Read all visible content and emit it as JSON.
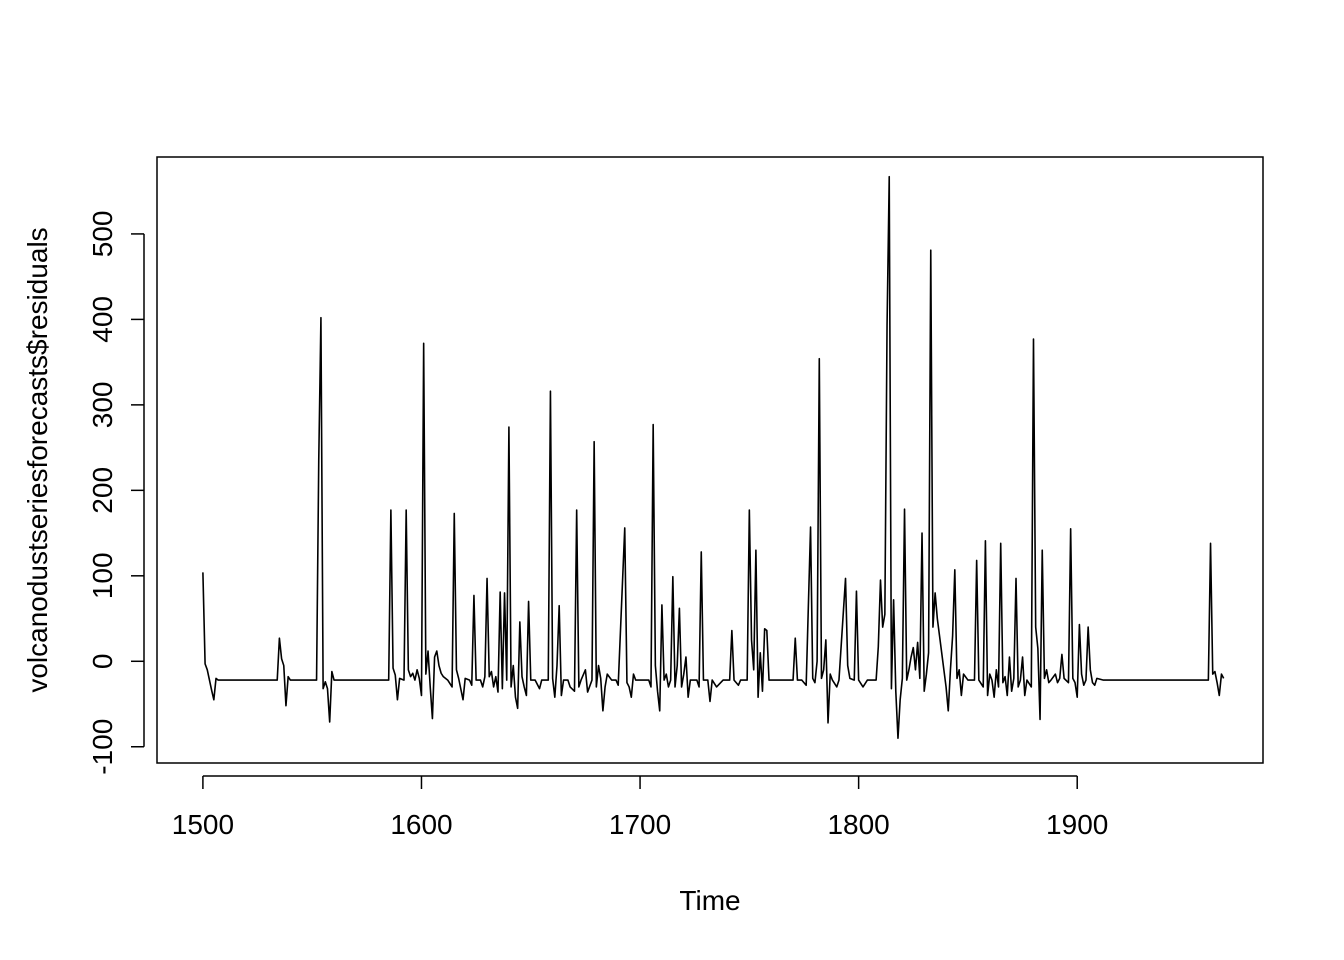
{
  "chart_data": {
    "type": "line",
    "title": "",
    "xlabel": "Time",
    "ylabel": "volcanodustseriesforecasts$residuals",
    "xlim": [
      1479,
      1985
    ],
    "ylim": [
      -119,
      590
    ],
    "x_ticks": [
      1500,
      1600,
      1700,
      1800,
      1900
    ],
    "y_ticks": [
      -100,
      0,
      100,
      200,
      300,
      400,
      500
    ],
    "grid": false,
    "legend": "none",
    "line_color": "#000000",
    "series": [
      {
        "points": [
          [
            1500,
            104
          ],
          [
            1501,
            -3
          ],
          [
            1502,
            -10
          ],
          [
            1503,
            -22
          ],
          [
            1504,
            -34
          ],
          [
            1505,
            -45
          ],
          [
            1506,
            -20
          ],
          [
            1507,
            -22
          ],
          [
            1534,
            -22
          ],
          [
            1535,
            27
          ],
          [
            1536,
            3
          ],
          [
            1537,
            -5
          ],
          [
            1538,
            -52
          ],
          [
            1539,
            -18
          ],
          [
            1540,
            -22
          ],
          [
            1552,
            -22
          ],
          [
            1553,
            235
          ],
          [
            1554,
            402
          ],
          [
            1555,
            -32
          ],
          [
            1556,
            -24
          ],
          [
            1557,
            -32
          ],
          [
            1558,
            -71
          ],
          [
            1559,
            -12
          ],
          [
            1560,
            -22
          ],
          [
            1585,
            -22
          ],
          [
            1586,
            177
          ],
          [
            1587,
            -8
          ],
          [
            1588,
            -16
          ],
          [
            1589,
            -45
          ],
          [
            1590,
            -20
          ],
          [
            1592,
            -22
          ],
          [
            1593,
            177
          ],
          [
            1594,
            -10
          ],
          [
            1595,
            -18
          ],
          [
            1596,
            -14
          ],
          [
            1597,
            -22
          ],
          [
            1598,
            -10
          ],
          [
            1599,
            -20
          ],
          [
            1600,
            -40
          ],
          [
            1601,
            372
          ],
          [
            1602,
            -15
          ],
          [
            1603,
            12
          ],
          [
            1604,
            -30
          ],
          [
            1605,
            -67
          ],
          [
            1606,
            5
          ],
          [
            1607,
            12
          ],
          [
            1608,
            -5
          ],
          [
            1609,
            -14
          ],
          [
            1610,
            -18
          ],
          [
            1612,
            -22
          ],
          [
            1614,
            -30
          ],
          [
            1615,
            173
          ],
          [
            1616,
            -10
          ],
          [
            1617,
            -20
          ],
          [
            1619,
            -45
          ],
          [
            1620,
            -20
          ],
          [
            1622,
            -22
          ],
          [
            1623,
            -28
          ],
          [
            1624,
            77
          ],
          [
            1625,
            -22
          ],
          [
            1627,
            -22
          ],
          [
            1628,
            -30
          ],
          [
            1629,
            -18
          ],
          [
            1630,
            97
          ],
          [
            1631,
            -18
          ],
          [
            1632,
            -12
          ],
          [
            1633,
            -30
          ],
          [
            1634,
            -18
          ],
          [
            1635,
            -36
          ],
          [
            1636,
            81
          ],
          [
            1637,
            -32
          ],
          [
            1638,
            80
          ],
          [
            1639,
            -22
          ],
          [
            1640,
            274
          ],
          [
            1641,
            -30
          ],
          [
            1642,
            -5
          ],
          [
            1643,
            -42
          ],
          [
            1644,
            -55
          ],
          [
            1645,
            46
          ],
          [
            1646,
            -18
          ],
          [
            1647,
            -30
          ],
          [
            1648,
            -40
          ],
          [
            1649,
            70
          ],
          [
            1650,
            -22
          ],
          [
            1652,
            -22
          ],
          [
            1654,
            -32
          ],
          [
            1655,
            -22
          ],
          [
            1658,
            -22
          ],
          [
            1659,
            316
          ],
          [
            1660,
            -20
          ],
          [
            1661,
            -42
          ],
          [
            1662,
            -5
          ],
          [
            1663,
            65
          ],
          [
            1664,
            -40
          ],
          [
            1665,
            -22
          ],
          [
            1667,
            -22
          ],
          [
            1668,
            -30
          ],
          [
            1670,
            -35
          ],
          [
            1671,
            177
          ],
          [
            1672,
            -30
          ],
          [
            1673,
            -22
          ],
          [
            1675,
            -10
          ],
          [
            1676,
            -36
          ],
          [
            1678,
            -22
          ],
          [
            1679,
            257
          ],
          [
            1680,
            -30
          ],
          [
            1681,
            -5
          ],
          [
            1682,
            -20
          ],
          [
            1683,
            -58
          ],
          [
            1684,
            -30
          ],
          [
            1685,
            -15
          ],
          [
            1687,
            -22
          ],
          [
            1689,
            -22
          ],
          [
            1690,
            -28
          ],
          [
            1693,
            156
          ],
          [
            1694,
            -25
          ],
          [
            1695,
            -30
          ],
          [
            1696,
            -42
          ],
          [
            1697,
            -15
          ],
          [
            1698,
            -22
          ],
          [
            1704,
            -22
          ],
          [
            1705,
            -30
          ],
          [
            1706,
            277
          ],
          [
            1707,
            -5
          ],
          [
            1708,
            -35
          ],
          [
            1709,
            -58
          ],
          [
            1710,
            66
          ],
          [
            1711,
            -22
          ],
          [
            1712,
            -15
          ],
          [
            1713,
            -30
          ],
          [
            1714,
            -22
          ],
          [
            1715,
            99
          ],
          [
            1716,
            -30
          ],
          [
            1717,
            -5
          ],
          [
            1718,
            62
          ],
          [
            1719,
            -30
          ],
          [
            1720,
            -15
          ],
          [
            1721,
            5
          ],
          [
            1722,
            -42
          ],
          [
            1723,
            -22
          ],
          [
            1726,
            -22
          ],
          [
            1727,
            -30
          ],
          [
            1728,
            128
          ],
          [
            1729,
            -22
          ],
          [
            1731,
            -22
          ],
          [
            1732,
            -47
          ],
          [
            1733,
            -22
          ],
          [
            1735,
            -30
          ],
          [
            1738,
            -22
          ],
          [
            1741,
            -22
          ],
          [
            1742,
            36
          ],
          [
            1743,
            -22
          ],
          [
            1745,
            -28
          ],
          [
            1746,
            -22
          ],
          [
            1749,
            -22
          ],
          [
            1750,
            177
          ],
          [
            1751,
            25
          ],
          [
            1752,
            -10
          ],
          [
            1753,
            130
          ],
          [
            1754,
            -42
          ],
          [
            1755,
            10
          ],
          [
            1756,
            -35
          ],
          [
            1757,
            38
          ],
          [
            1758,
            36
          ],
          [
            1759,
            -22
          ],
          [
            1770,
            -22
          ],
          [
            1771,
            27
          ],
          [
            1772,
            -22
          ],
          [
            1774,
            -22
          ],
          [
            1776,
            -28
          ],
          [
            1778,
            157
          ],
          [
            1779,
            -20
          ],
          [
            1780,
            -25
          ],
          [
            1781,
            0
          ],
          [
            1782,
            354
          ],
          [
            1783,
            -20
          ],
          [
            1784,
            -10
          ],
          [
            1785,
            25
          ],
          [
            1786,
            -72
          ],
          [
            1787,
            -15
          ],
          [
            1788,
            -22
          ],
          [
            1790,
            -30
          ],
          [
            1791,
            -22
          ],
          [
            1794,
            97
          ],
          [
            1795,
            -5
          ],
          [
            1796,
            -20
          ],
          [
            1798,
            -22
          ],
          [
            1799,
            82
          ],
          [
            1800,
            -22
          ],
          [
            1802,
            -30
          ],
          [
            1804,
            -22
          ],
          [
            1808,
            -22
          ],
          [
            1809,
            17
          ],
          [
            1810,
            95
          ],
          [
            1811,
            40
          ],
          [
            1812,
            55
          ],
          [
            1813,
            393
          ],
          [
            1814,
            567
          ],
          [
            1815,
            -32
          ],
          [
            1816,
            72
          ],
          [
            1817,
            -35
          ],
          [
            1818,
            -90
          ],
          [
            1819,
            -45
          ],
          [
            1820,
            -20
          ],
          [
            1821,
            178
          ],
          [
            1822,
            -22
          ],
          [
            1823,
            -10
          ],
          [
            1824,
            5
          ],
          [
            1825,
            16
          ],
          [
            1826,
            -10
          ],
          [
            1827,
            22
          ],
          [
            1828,
            -20
          ],
          [
            1829,
            150
          ],
          [
            1830,
            -35
          ],
          [
            1831,
            -15
          ],
          [
            1832,
            10
          ],
          [
            1833,
            481
          ],
          [
            1834,
            40
          ],
          [
            1835,
            80
          ],
          [
            1836,
            50
          ],
          [
            1838,
            10
          ],
          [
            1840,
            -30
          ],
          [
            1841,
            -58
          ],
          [
            1842,
            -10
          ],
          [
            1843,
            30
          ],
          [
            1844,
            107
          ],
          [
            1845,
            -20
          ],
          [
            1846,
            -10
          ],
          [
            1847,
            -40
          ],
          [
            1848,
            -15
          ],
          [
            1850,
            -22
          ],
          [
            1853,
            -22
          ],
          [
            1854,
            118
          ],
          [
            1855,
            -22
          ],
          [
            1857,
            -30
          ],
          [
            1858,
            141
          ],
          [
            1859,
            -40
          ],
          [
            1860,
            -15
          ],
          [
            1861,
            -22
          ],
          [
            1862,
            -42
          ],
          [
            1863,
            -10
          ],
          [
            1864,
            -30
          ],
          [
            1865,
            138
          ],
          [
            1866,
            -25
          ],
          [
            1867,
            -18
          ],
          [
            1868,
            -40
          ],
          [
            1869,
            5
          ],
          [
            1870,
            -35
          ],
          [
            1871,
            -20
          ],
          [
            1872,
            97
          ],
          [
            1873,
            -30
          ],
          [
            1874,
            -22
          ],
          [
            1875,
            5
          ],
          [
            1876,
            -40
          ],
          [
            1877,
            -22
          ],
          [
            1879,
            -30
          ],
          [
            1880,
            377
          ],
          [
            1881,
            40
          ],
          [
            1882,
            15
          ],
          [
            1883,
            -68
          ],
          [
            1884,
            130
          ],
          [
            1885,
            -20
          ],
          [
            1886,
            -10
          ],
          [
            1887,
            -25
          ],
          [
            1888,
            -22
          ],
          [
            1890,
            -15
          ],
          [
            1891,
            -25
          ],
          [
            1892,
            -20
          ],
          [
            1893,
            8
          ],
          [
            1894,
            -20
          ],
          [
            1896,
            -25
          ],
          [
            1897,
            155
          ],
          [
            1898,
            -20
          ],
          [
            1899,
            -25
          ],
          [
            1900,
            -42
          ],
          [
            1901,
            43
          ],
          [
            1902,
            -15
          ],
          [
            1903,
            -28
          ],
          [
            1904,
            -22
          ],
          [
            1905,
            40
          ],
          [
            1906,
            -10
          ],
          [
            1907,
            -25
          ],
          [
            1908,
            -28
          ],
          [
            1909,
            -20
          ],
          [
            1912,
            -22
          ],
          [
            1960,
            -22
          ],
          [
            1961,
            138
          ],
          [
            1962,
            -15
          ],
          [
            1963,
            -12
          ],
          [
            1964,
            -25
          ],
          [
            1965,
            -40
          ],
          [
            1966,
            -15
          ],
          [
            1967,
            -20
          ]
        ]
      }
    ]
  }
}
